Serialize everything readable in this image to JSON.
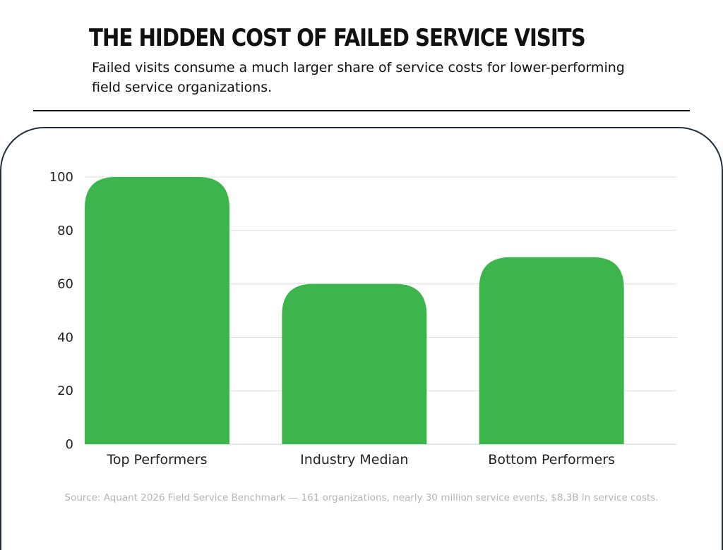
{
  "header": {
    "title": "THE HIDDEN COST OF FAILED SERVICE VISITS",
    "subtitle": "Failed visits consume a much larger share of service costs for lower-performing field service organizations."
  },
  "footer": {
    "source": "Source: Aquant 2026 Field Service Benchmark — 161 organizations, nearly 30 million service events, $8.3B in service costs."
  },
  "colors": {
    "bar": "#3cb54c",
    "grid": "#dddddd",
    "baseline": "#cccccc"
  },
  "chart_data": {
    "type": "bar",
    "categories": [
      "Top Performers",
      "Industry Median",
      "Bottom Performers"
    ],
    "values": [
      100,
      60,
      70
    ],
    "yticks": [
      0,
      20,
      40,
      60,
      80,
      100
    ],
    "ylim": [
      0,
      100
    ],
    "xlabel": "",
    "ylabel": "",
    "grid": true,
    "legend": "none"
  }
}
